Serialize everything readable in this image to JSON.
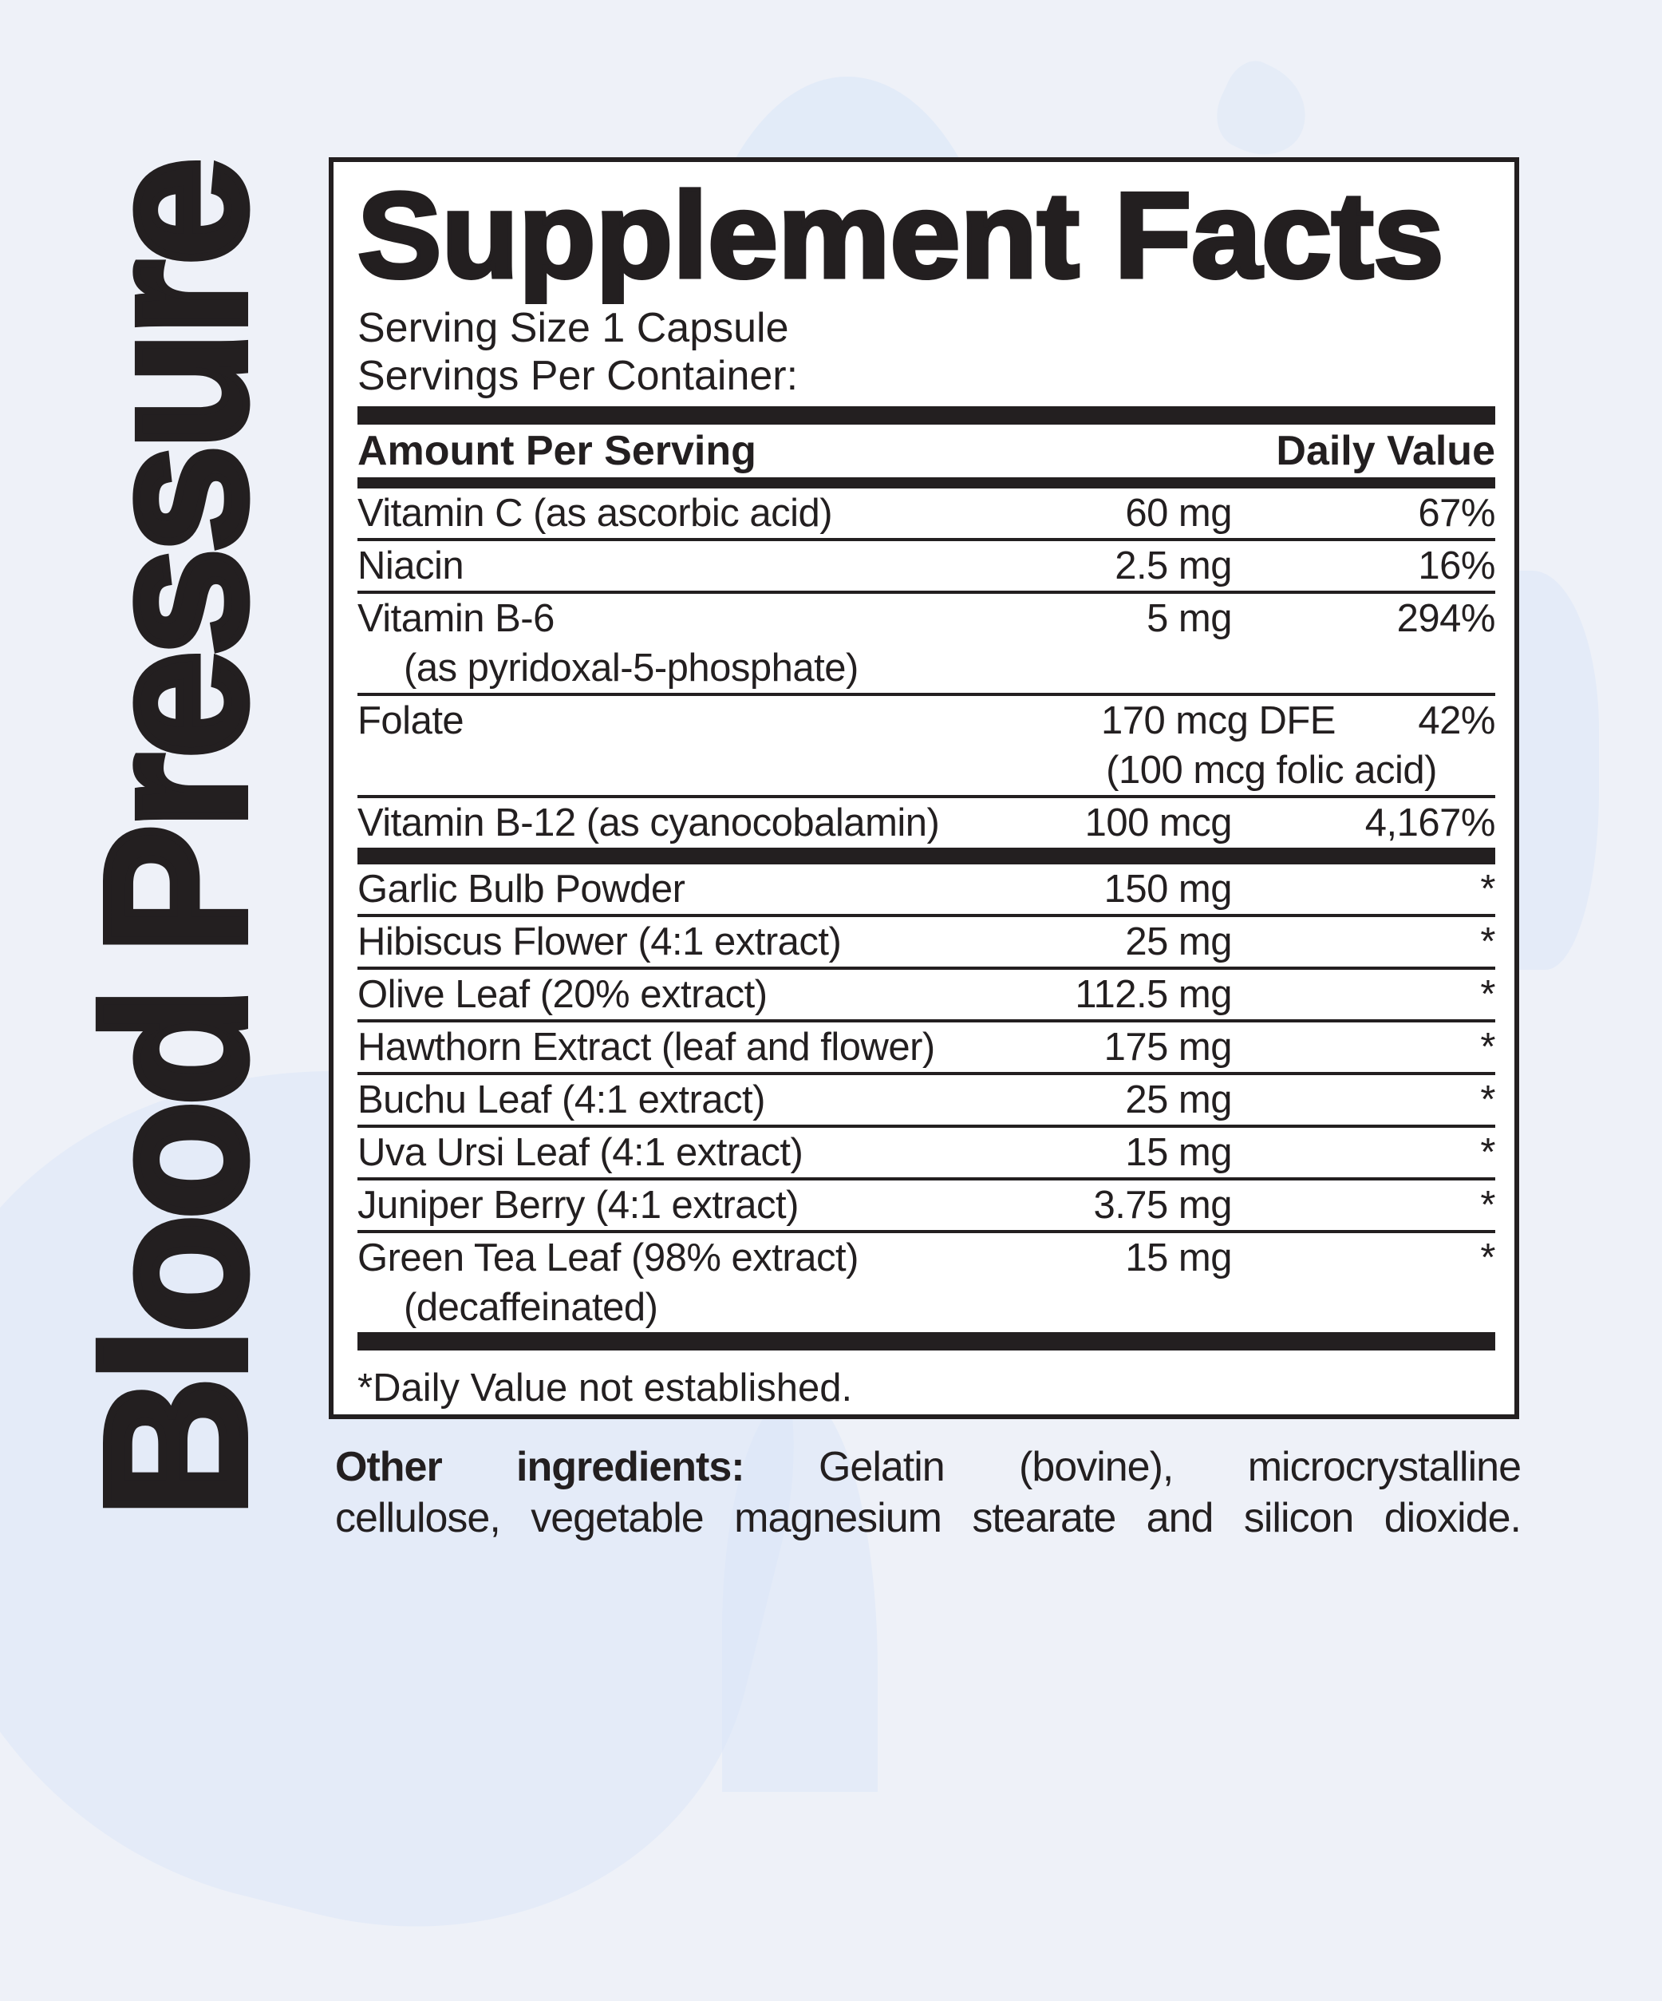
{
  "side_label": "Blood Pressure",
  "panel": {
    "title": "Supplement Facts",
    "serving_size": "Serving Size 1 Capsule",
    "servings_per_container": "Servings Per Container:",
    "header": {
      "amount": "Amount Per Serving",
      "daily_value": "Daily Value"
    },
    "vitamin_rows": [
      {
        "name": "Vitamin C (as ascorbic acid)",
        "amount": "60 mg",
        "dv": "67%"
      },
      {
        "name": "Niacin",
        "amount": "2.5 mg",
        "dv": "16%"
      },
      {
        "name": "Vitamin B-6",
        "name2": "(as pyridoxal-5-phosphate)",
        "amount": "5 mg",
        "dv": "294%"
      },
      {
        "name": "Folate",
        "amount": "170 mcg DFE",
        "amount2": "(100 mcg folic acid)",
        "dv": "42%",
        "dv_narrow": true
      },
      {
        "name": "Vitamin B-12 (as cyanocobalamin)",
        "amount": "100 mcg",
        "dv": "4,167%"
      }
    ],
    "herbal_rows": [
      {
        "name": "Garlic Bulb Powder",
        "amount": "150 mg",
        "dv": "*"
      },
      {
        "name": "Hibiscus Flower (4:1 extract)",
        "amount": "25 mg",
        "dv": "*"
      },
      {
        "name": "Olive Leaf (20% extract)",
        "amount": "112.5 mg",
        "dv": "*"
      },
      {
        "name": "Hawthorn Extract (leaf and flower)",
        "amount": "175 mg",
        "dv": "*"
      },
      {
        "name": "Buchu Leaf (4:1 extract)",
        "amount": "25 mg",
        "dv": "*"
      },
      {
        "name": "Uva Ursi Leaf (4:1 extract)",
        "amount": "15 mg",
        "dv": "*"
      },
      {
        "name": "Juniper Berry (4:1 extract)",
        "amount": "3.75 mg",
        "dv": "*"
      },
      {
        "name": "Green Tea Leaf (98% extract)",
        "name2": "(decaffeinated)",
        "amount": "15 mg",
        "dv": "*"
      }
    ],
    "footnote": "*Daily Value not established."
  },
  "other_ingredients": {
    "label": "Other ingredients:",
    "line1_rest": "Gelatin (bovine), microcrystalline",
    "line2": "cellulose, vegetable magnesium stearate and silicon dioxide."
  },
  "colors": {
    "background": "#eef1f8",
    "blob": "#d9e6f7",
    "panel_background": "#ffffff",
    "ink": "#231f20"
  }
}
